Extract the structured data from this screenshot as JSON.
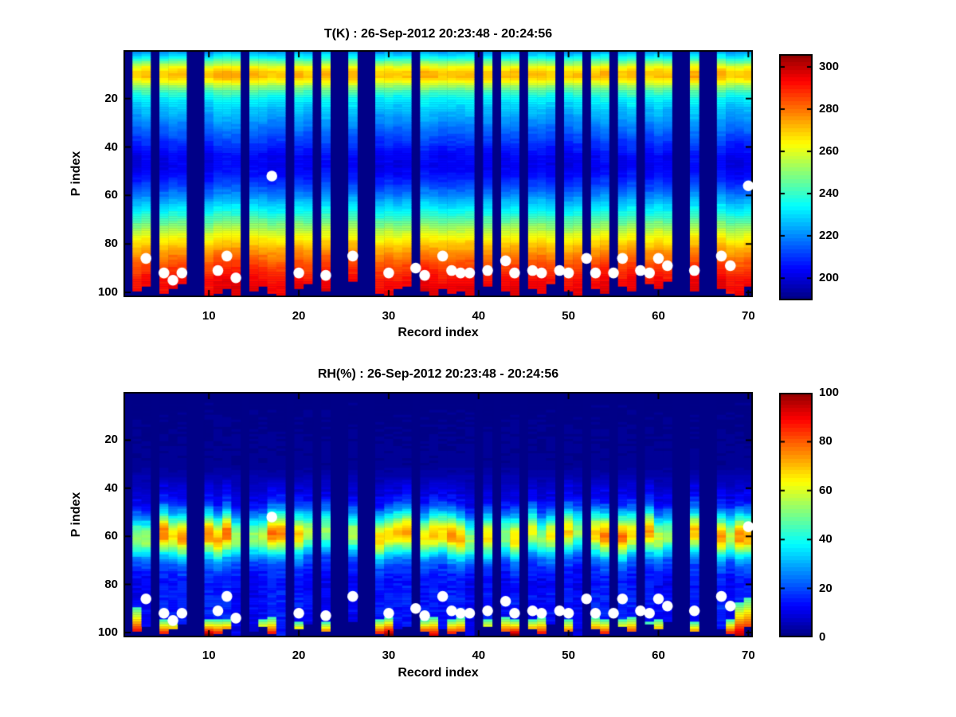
{
  "figure": {
    "background": "#ffffff",
    "text_color": "#000000",
    "nan_color": "#000087",
    "marker_color": "#ffffff"
  },
  "chart_data": [
    {
      "type": "heatmap",
      "id": "temperature",
      "title": "T(K) : 26-Sep-2012 20:23:48 - 20:24:56",
      "xlabel": "Record index",
      "ylabel": "P index",
      "x_range": [
        1,
        70
      ],
      "y_range": [
        1,
        101
      ],
      "y_axis_reversed": true,
      "grid": false,
      "colormap": "jet",
      "vmin": 189.5,
      "vmax": 306,
      "x_ticks": [
        10,
        20,
        30,
        40,
        50,
        60,
        70
      ],
      "y_ticks": [
        20,
        40,
        60,
        80,
        100
      ],
      "colorbar_ticks": [
        200,
        220,
        240,
        260,
        280,
        300
      ],
      "missing_records": [
        1,
        4,
        8,
        9,
        14,
        19,
        22,
        24,
        25,
        27,
        28,
        33,
        40,
        42,
        45,
        49,
        52,
        55,
        58,
        62,
        63,
        65,
        66
      ],
      "profile": [
        [
          1,
          224
        ],
        [
          3,
          234
        ],
        [
          5,
          248
        ],
        [
          7,
          262
        ],
        [
          9,
          270
        ],
        [
          11,
          271
        ],
        [
          13,
          263
        ],
        [
          15,
          252
        ],
        [
          17,
          243
        ],
        [
          20,
          234
        ],
        [
          24,
          228
        ],
        [
          28,
          223
        ],
        [
          32,
          218
        ],
        [
          36,
          213
        ],
        [
          40,
          208
        ],
        [
          44,
          204
        ],
        [
          48,
          203
        ],
        [
          52,
          206
        ],
        [
          56,
          212
        ],
        [
          60,
          220
        ],
        [
          64,
          229
        ],
        [
          68,
          238
        ],
        [
          72,
          249
        ],
        [
          76,
          260
        ],
        [
          80,
          269
        ],
        [
          84,
          277
        ],
        [
          88,
          284
        ],
        [
          92,
          289
        ],
        [
          96,
          293
        ],
        [
          101,
          295
        ]
      ],
      "bottom_cut": {
        "2": 99,
        "3": 97,
        "5": 100,
        "6": 98,
        "7": 96,
        "10": 101,
        "11": 100,
        "12": 98,
        "13": 101,
        "15": 99,
        "16": 97,
        "17": 100,
        "18": 101,
        "20": 98,
        "21": 96,
        "23": 99,
        "26": 95,
        "29": 100,
        "30": 101,
        "31": 98,
        "32": 97,
        "34": 99,
        "35": 101,
        "36": 98,
        "37": 100,
        "38": 99,
        "39": 101,
        "41": 97,
        "43": 99,
        "44": 101,
        "46": 98,
        "47": 100,
        "48": 96,
        "50": 99,
        "51": 101,
        "53": 98,
        "54": 100,
        "56": 97,
        "57": 99,
        "59": 96,
        "60": 98,
        "61": 95,
        "64": 99,
        "67": 98,
        "68": 100,
        "69": 101,
        "70": 97
      },
      "markers": {
        "shape": "circle",
        "color": "#ffffff",
        "radius_px": 6.8,
        "points": [
          [
            3,
            86
          ],
          [
            5,
            92
          ],
          [
            6,
            95
          ],
          [
            7,
            92
          ],
          [
            11,
            91
          ],
          [
            12,
            85
          ],
          [
            13,
            94
          ],
          [
            17,
            52
          ],
          [
            20,
            92
          ],
          [
            23,
            93
          ],
          [
            26,
            85
          ],
          [
            30,
            92
          ],
          [
            33,
            90
          ],
          [
            34,
            93
          ],
          [
            36,
            85
          ],
          [
            37,
            91
          ],
          [
            38,
            92
          ],
          [
            39,
            92
          ],
          [
            41,
            91
          ],
          [
            43,
            87
          ],
          [
            44,
            92
          ],
          [
            46,
            91
          ],
          [
            47,
            92
          ],
          [
            49,
            91
          ],
          [
            50,
            92
          ],
          [
            52,
            86
          ],
          [
            53,
            92
          ],
          [
            55,
            92
          ],
          [
            56,
            86
          ],
          [
            58,
            91
          ],
          [
            59,
            92
          ],
          [
            60,
            86
          ],
          [
            61,
            89
          ],
          [
            64,
            91
          ],
          [
            67,
            85
          ],
          [
            68,
            89
          ],
          [
            70,
            56
          ]
        ]
      }
    },
    {
      "type": "heatmap",
      "id": "humidity",
      "title": "RH(%) : 26-Sep-2012 20:23:48 - 20:24:56",
      "xlabel": "Record index",
      "ylabel": "P index",
      "x_range": [
        1,
        70
      ],
      "y_range": [
        1,
        101
      ],
      "y_axis_reversed": true,
      "grid": false,
      "colormap": "jet",
      "vmin": 0,
      "vmax": 100,
      "x_ticks": [
        10,
        20,
        30,
        40,
        50,
        60,
        70
      ],
      "y_ticks": [
        20,
        40,
        60,
        80,
        100
      ],
      "colorbar_ticks": [
        0,
        20,
        40,
        60,
        80,
        100
      ],
      "missing_records": [
        1,
        4,
        8,
        9,
        14,
        19,
        22,
        24,
        25,
        27,
        28,
        33,
        40,
        42,
        45,
        49,
        52,
        55,
        58,
        62,
        63,
        65,
        66
      ],
      "profile": [
        [
          1,
          1
        ],
        [
          30,
          2
        ],
        [
          34,
          4
        ],
        [
          38,
          7
        ],
        [
          42,
          10
        ],
        [
          46,
          15
        ],
        [
          50,
          28
        ],
        [
          53,
          42
        ],
        [
          56,
          57
        ],
        [
          58,
          64
        ],
        [
          60,
          66
        ],
        [
          62,
          62
        ],
        [
          64,
          52
        ],
        [
          66,
          42
        ],
        [
          68,
          33
        ],
        [
          70,
          25
        ],
        [
          73,
          19
        ],
        [
          76,
          15
        ],
        [
          80,
          13
        ],
        [
          84,
          14
        ],
        [
          88,
          15
        ],
        [
          92,
          14
        ],
        [
          96,
          13
        ],
        [
          101,
          12
        ]
      ],
      "bottom_cut": {
        "2": 99,
        "3": 97,
        "5": 100,
        "6": 98,
        "7": 96,
        "10": 101,
        "11": 100,
        "12": 98,
        "13": 101,
        "15": 99,
        "16": 97,
        "17": 100,
        "18": 101,
        "20": 98,
        "21": 96,
        "23": 99,
        "26": 95,
        "29": 100,
        "30": 101,
        "31": 98,
        "32": 97,
        "34": 99,
        "35": 101,
        "36": 98,
        "37": 100,
        "38": 99,
        "39": 101,
        "41": 97,
        "43": 99,
        "44": 101,
        "46": 98,
        "47": 100,
        "48": 96,
        "50": 99,
        "51": 101,
        "53": 98,
        "54": 100,
        "56": 97,
        "57": 99,
        "59": 96,
        "60": 98,
        "61": 95,
        "64": 99,
        "67": 98,
        "68": 100,
        "69": 101,
        "70": 97
      },
      "surface_red": {
        "2": [
          90,
          95
        ],
        "5": [
          95,
          92
        ],
        "6": [
          95,
          90
        ],
        "10": [
          95,
          100
        ],
        "11": [
          95,
          92
        ],
        "12": [
          95,
          100
        ],
        "16": [
          95,
          90
        ],
        "17": [
          94,
          93
        ],
        "20": [
          96,
          88
        ],
        "23": [
          96,
          90
        ],
        "29": [
          95,
          92
        ],
        "30": [
          94,
          100
        ],
        "34": [
          95,
          95
        ],
        "35": [
          94,
          92
        ],
        "37": [
          95,
          93
        ],
        "38": [
          94,
          92
        ],
        "41": [
          95,
          90
        ],
        "43": [
          94,
          93
        ],
        "44": [
          95,
          100
        ],
        "46": [
          95,
          92
        ],
        "47": [
          94,
          93
        ],
        "50": [
          95,
          90
        ],
        "53": [
          94,
          92
        ],
        "54": [
          95,
          93
        ],
        "56": [
          95,
          90
        ],
        "57": [
          94,
          92
        ],
        "59": [
          96,
          88
        ],
        "60": [
          95,
          90
        ],
        "64": [
          96,
          88
        ],
        "68": [
          95,
          92
        ],
        "69": [
          88,
          95
        ],
        "70": [
          86,
          96
        ]
      },
      "markers": {
        "shape": "circle",
        "color": "#ffffff",
        "radius_px": 6.8,
        "points": [
          [
            3,
            86
          ],
          [
            5,
            92
          ],
          [
            6,
            95
          ],
          [
            7,
            92
          ],
          [
            11,
            91
          ],
          [
            12,
            85
          ],
          [
            13,
            94
          ],
          [
            17,
            52
          ],
          [
            20,
            92
          ],
          [
            23,
            93
          ],
          [
            26,
            85
          ],
          [
            30,
            92
          ],
          [
            33,
            90
          ],
          [
            34,
            93
          ],
          [
            36,
            85
          ],
          [
            37,
            91
          ],
          [
            38,
            92
          ],
          [
            39,
            92
          ],
          [
            41,
            91
          ],
          [
            43,
            87
          ],
          [
            44,
            92
          ],
          [
            46,
            91
          ],
          [
            47,
            92
          ],
          [
            49,
            91
          ],
          [
            50,
            92
          ],
          [
            52,
            86
          ],
          [
            53,
            92
          ],
          [
            55,
            92
          ],
          [
            56,
            86
          ],
          [
            58,
            91
          ],
          [
            59,
            92
          ],
          [
            60,
            86
          ],
          [
            61,
            89
          ],
          [
            64,
            91
          ],
          [
            67,
            85
          ],
          [
            68,
            89
          ],
          [
            70,
            56
          ]
        ]
      }
    }
  ]
}
